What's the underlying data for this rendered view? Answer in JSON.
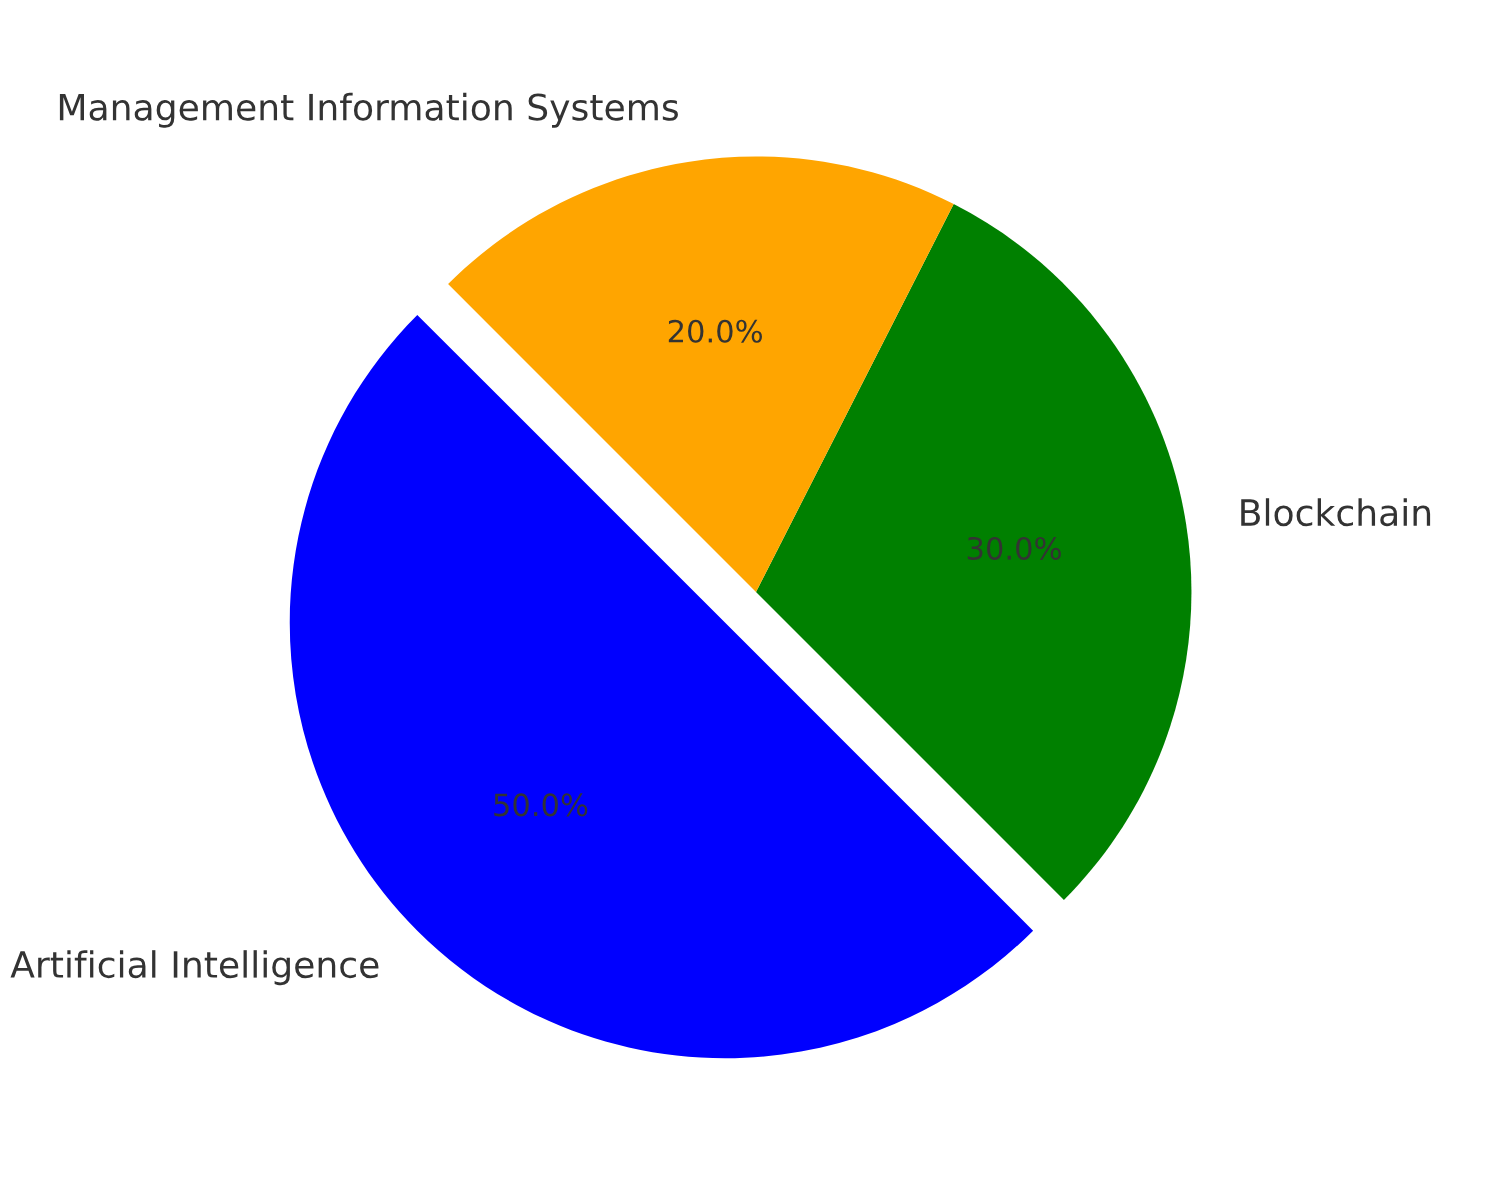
{
  "chart_data": {
    "type": "pie",
    "categories": [
      "Artificial Intelligence",
      "Blockchain",
      "Management Information Systems"
    ],
    "values": [
      50,
      30,
      20
    ],
    "colors": [
      "#0000ff",
      "#008000",
      "#ffa500"
    ],
    "value_labels": [
      "50.0%",
      "30.0%",
      "20.0%"
    ]
  }
}
